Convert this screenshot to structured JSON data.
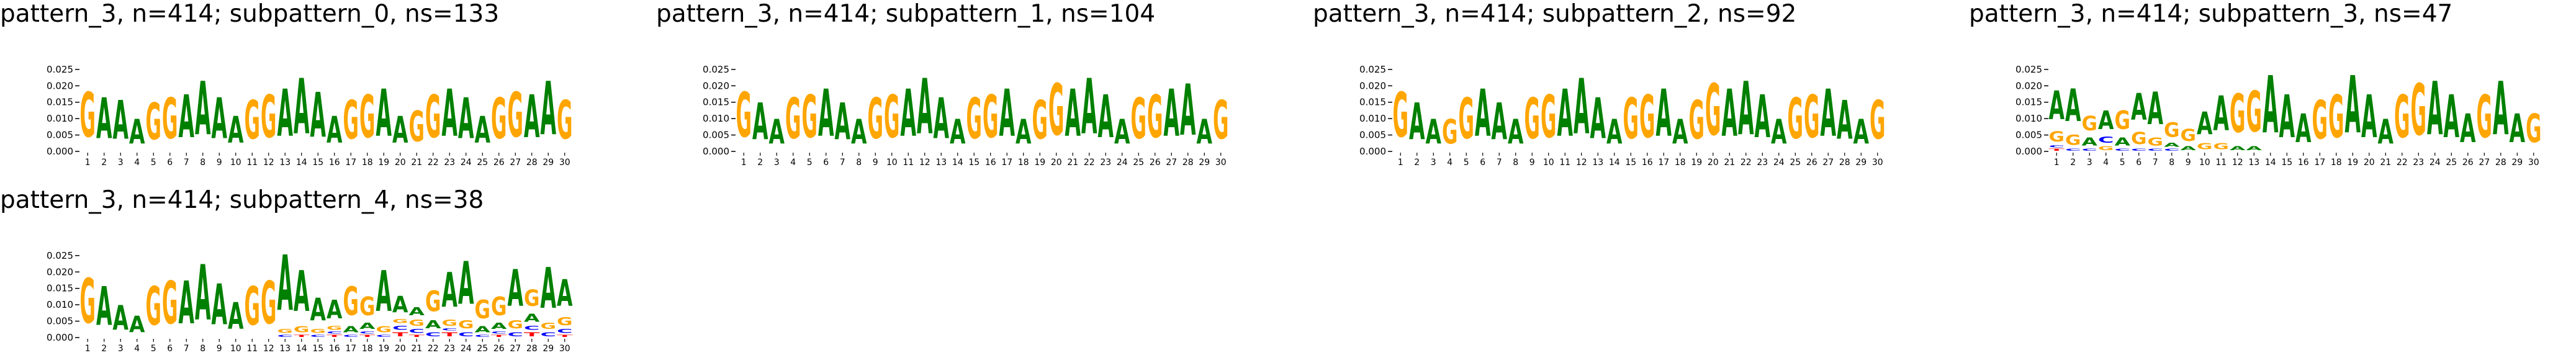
{
  "chart_data": [
    {
      "type": "sequence-logo",
      "title": "pattern_3, n=414; subpattern_0, ns=133",
      "ylim": [
        0,
        0.028
      ],
      "yticks": [
        "0.000",
        "0.005",
        "0.010",
        "0.015",
        "0.020",
        "0.025"
      ],
      "positions": [
        "1",
        "2",
        "3",
        "4",
        "5",
        "6",
        "7",
        "8",
        "9",
        "10",
        "11",
        "12",
        "13",
        "14",
        "15",
        "16",
        "17",
        "18",
        "19",
        "20",
        "21",
        "22",
        "23",
        "24",
        "25",
        "26",
        "27",
        "28",
        "29",
        "30"
      ],
      "columns": [
        [
          [
            "G",
            0.022
          ]
        ],
        [
          [
            "A",
            0.02
          ]
        ],
        [
          [
            "A",
            0.019
          ]
        ],
        [
          [
            "A",
            0.012
          ]
        ],
        [
          [
            "G",
            0.018
          ]
        ],
        [
          [
            "G",
            0.02
          ]
        ],
        [
          [
            "A",
            0.021
          ]
        ],
        [
          [
            "A",
            0.026
          ]
        ],
        [
          [
            "A",
            0.02
          ]
        ],
        [
          [
            "A",
            0.013
          ]
        ],
        [
          [
            "G",
            0.019
          ]
        ],
        [
          [
            "G",
            0.021
          ]
        ],
        [
          [
            "A",
            0.023
          ]
        ],
        [
          [
            "A",
            0.027
          ]
        ],
        [
          [
            "A",
            0.022
          ]
        ],
        [
          [
            "A",
            0.013
          ]
        ],
        [
          [
            "G",
            0.019
          ]
        ],
        [
          [
            "G",
            0.021
          ]
        ],
        [
          [
            "A",
            0.023
          ]
        ],
        [
          [
            "A",
            0.013
          ]
        ],
        [
          [
            "G",
            0.015
          ]
        ],
        [
          [
            "G",
            0.021
          ]
        ],
        [
          [
            "A",
            0.023
          ]
        ],
        [
          [
            "A",
            0.02
          ]
        ],
        [
          [
            "A",
            0.013
          ]
        ],
        [
          [
            "G",
            0.02
          ]
        ],
        [
          [
            "G",
            0.022
          ]
        ],
        [
          [
            "A",
            0.021
          ]
        ],
        [
          [
            "A",
            0.026
          ]
        ],
        [
          [
            "G",
            0.019
          ]
        ]
      ]
    },
    {
      "type": "sequence-logo",
      "title": "pattern_3, n=414; subpattern_1, ns=104",
      "ylim": [
        0,
        0.028
      ],
      "yticks": [
        "0.000",
        "0.005",
        "0.010",
        "0.015",
        "0.020",
        "0.025"
      ],
      "positions": [
        "1",
        "2",
        "3",
        "4",
        "5",
        "6",
        "7",
        "8",
        "9",
        "10",
        "11",
        "12",
        "13",
        "14",
        "15",
        "16",
        "17",
        "18",
        "19",
        "20",
        "21",
        "22",
        "23",
        "24",
        "25",
        "26",
        "27",
        "28",
        "29",
        "30"
      ],
      "columns": [
        [
          [
            "G",
            0.022
          ]
        ],
        [
          [
            "A",
            0.018
          ]
        ],
        [
          [
            "A",
            0.012
          ]
        ],
        [
          [
            "G",
            0.02
          ]
        ],
        [
          [
            "G",
            0.021
          ]
        ],
        [
          [
            "A",
            0.023
          ]
        ],
        [
          [
            "A",
            0.018
          ]
        ],
        [
          [
            "A",
            0.012
          ]
        ],
        [
          [
            "G",
            0.02
          ]
        ],
        [
          [
            "G",
            0.021
          ]
        ],
        [
          [
            "A",
            0.023
          ]
        ],
        [
          [
            "A",
            0.027
          ]
        ],
        [
          [
            "A",
            0.02
          ]
        ],
        [
          [
            "A",
            0.012
          ]
        ],
        [
          [
            "G",
            0.02
          ]
        ],
        [
          [
            "G",
            0.021
          ]
        ],
        [
          [
            "A",
            0.023
          ]
        ],
        [
          [
            "A",
            0.012
          ]
        ],
        [
          [
            "G",
            0.019
          ]
        ],
        [
          [
            "G",
            0.025
          ]
        ],
        [
          [
            "A",
            0.023
          ]
        ],
        [
          [
            "A",
            0.027
          ]
        ],
        [
          [
            "A",
            0.021
          ]
        ],
        [
          [
            "A",
            0.012
          ]
        ],
        [
          [
            "G",
            0.02
          ]
        ],
        [
          [
            "G",
            0.021
          ]
        ],
        [
          [
            "A",
            0.023
          ]
        ],
        [
          [
            "A",
            0.025
          ]
        ],
        [
          [
            "A",
            0.012
          ]
        ],
        [
          [
            "G",
            0.019
          ]
        ]
      ]
    },
    {
      "type": "sequence-logo",
      "title": "pattern_3, n=414; subpattern_2, ns=92",
      "ylim": [
        0,
        0.028
      ],
      "yticks": [
        "0.000",
        "0.005",
        "0.010",
        "0.015",
        "0.020",
        "0.025"
      ],
      "positions": [
        "1",
        "2",
        "3",
        "4",
        "5",
        "6",
        "7",
        "8",
        "9",
        "10",
        "11",
        "12",
        "13",
        "14",
        "15",
        "16",
        "17",
        "18",
        "19",
        "20",
        "21",
        "22",
        "23",
        "24",
        "25",
        "26",
        "27",
        "28",
        "29",
        "30"
      ],
      "columns": [
        [
          [
            "G",
            0.022
          ]
        ],
        [
          [
            "A",
            0.018
          ]
        ],
        [
          [
            "A",
            0.012
          ]
        ],
        [
          [
            "G",
            0.012
          ]
        ],
        [
          [
            "G",
            0.02
          ]
        ],
        [
          [
            "A",
            0.023
          ]
        ],
        [
          [
            "A",
            0.018
          ]
        ],
        [
          [
            "A",
            0.012
          ]
        ],
        [
          [
            "G",
            0.02
          ]
        ],
        [
          [
            "G",
            0.021
          ]
        ],
        [
          [
            "A",
            0.023
          ]
        ],
        [
          [
            "A",
            0.027
          ]
        ],
        [
          [
            "A",
            0.02
          ]
        ],
        [
          [
            "A",
            0.012
          ]
        ],
        [
          [
            "G",
            0.02
          ]
        ],
        [
          [
            "G",
            0.021
          ]
        ],
        [
          [
            "A",
            0.023
          ]
        ],
        [
          [
            "A",
            0.012
          ]
        ],
        [
          [
            "G",
            0.019
          ]
        ],
        [
          [
            "G",
            0.025
          ]
        ],
        [
          [
            "A",
            0.023
          ]
        ],
        [
          [
            "A",
            0.026
          ]
        ],
        [
          [
            "A",
            0.021
          ]
        ],
        [
          [
            "A",
            0.012
          ]
        ],
        [
          [
            "G",
            0.02
          ]
        ],
        [
          [
            "G",
            0.021
          ]
        ],
        [
          [
            "A",
            0.023
          ]
        ],
        [
          [
            "A",
            0.019
          ]
        ],
        [
          [
            "A",
            0.012
          ]
        ],
        [
          [
            "G",
            0.019
          ]
        ]
      ]
    },
    {
      "type": "sequence-logo",
      "title": "pattern_3, n=414; subpattern_3, ns=47",
      "ylim": [
        0,
        0.028
      ],
      "yticks": [
        "0.000",
        "0.005",
        "0.010",
        "0.015",
        "0.020",
        "0.025"
      ],
      "positions": [
        "1",
        "2",
        "3",
        "4",
        "5",
        "6",
        "7",
        "8",
        "9",
        "10",
        "11",
        "12",
        "13",
        "14",
        "15",
        "16",
        "17",
        "18",
        "19",
        "20",
        "21",
        "22",
        "23",
        "24",
        "25",
        "26",
        "27",
        "28",
        "29",
        "30"
      ],
      "columns": [
        [
          [
            "T",
            0.001
          ],
          [
            "C",
            0.001
          ],
          [
            "G",
            0.005
          ],
          [
            "A",
            0.014
          ]
        ],
        [
          [
            "C",
            0.001
          ],
          [
            "G",
            0.005
          ],
          [
            "A",
            0.016
          ]
        ],
        [
          [
            "C",
            0.001
          ],
          [
            "A",
            0.004
          ],
          [
            "G",
            0.007
          ]
        ],
        [
          [
            "G",
            0.002
          ],
          [
            "C",
            0.003
          ],
          [
            "A",
            0.009
          ]
        ],
        [
          [
            "C",
            0.001
          ],
          [
            "A",
            0.004
          ],
          [
            "G",
            0.009
          ]
        ],
        [
          [
            "C",
            0.001
          ],
          [
            "G",
            0.006
          ],
          [
            "A",
            0.013
          ]
        ],
        [
          [
            "C",
            0.001
          ],
          [
            "G",
            0.004
          ],
          [
            "A",
            0.016
          ]
        ],
        [
          [
            "C",
            0.001
          ],
          [
            "A",
            0.002
          ],
          [
            "G",
            0.007
          ]
        ],
        [
          [
            "A",
            0.002
          ],
          [
            "G",
            0.006
          ]
        ],
        [
          [
            "G",
            0.003
          ],
          [
            "A",
            0.011
          ]
        ],
        [
          [
            "G",
            0.003
          ],
          [
            "A",
            0.017
          ]
        ],
        [
          [
            "A",
            0.002
          ],
          [
            "G",
            0.019
          ]
        ],
        [
          [
            "A",
            0.002
          ],
          [
            "G",
            0.02
          ]
        ],
        [
          [
            "A",
            0.028
          ]
        ],
        [
          [
            "A",
            0.021
          ]
        ],
        [
          [
            "A",
            0.014
          ]
        ],
        [
          [
            "G",
            0.019
          ]
        ],
        [
          [
            "G",
            0.021
          ]
        ],
        [
          [
            "A",
            0.028
          ]
        ],
        [
          [
            "A",
            0.021
          ]
        ],
        [
          [
            "A",
            0.012
          ]
        ],
        [
          [
            "G",
            0.021
          ]
        ],
        [
          [
            "G",
            0.025
          ]
        ],
        [
          [
            "A",
            0.026
          ]
        ],
        [
          [
            "A",
            0.021
          ]
        ],
        [
          [
            "A",
            0.014
          ]
        ],
        [
          [
            "G",
            0.021
          ]
        ],
        [
          [
            "A",
            0.026
          ]
        ],
        [
          [
            "A",
            0.014
          ]
        ],
        [
          [
            "G",
            0.014
          ]
        ]
      ]
    },
    {
      "type": "sequence-logo",
      "title": "pattern_3, n=414; subpattern_4, ns=38",
      "ylim": [
        0,
        0.028
      ],
      "yticks": [
        "0.000",
        "0.005",
        "0.010",
        "0.015",
        "0.020",
        "0.025"
      ],
      "positions": [
        "1",
        "2",
        "3",
        "4",
        "5",
        "6",
        "7",
        "8",
        "9",
        "10",
        "11",
        "12",
        "13",
        "14",
        "15",
        "16",
        "17",
        "18",
        "19",
        "20",
        "21",
        "22",
        "23",
        "24",
        "25",
        "26",
        "27",
        "28",
        "29",
        "30"
      ],
      "columns": [
        [
          [
            "G",
            0.022
          ]
        ],
        [
          [
            "A",
            0.019
          ]
        ],
        [
          [
            "A",
            0.012
          ]
        ],
        [
          [
            "A",
            0.008
          ]
        ],
        [
          [
            "G",
            0.019
          ]
        ],
        [
          [
            "G",
            0.021
          ]
        ],
        [
          [
            "A",
            0.021
          ]
        ],
        [
          [
            "A",
            0.027
          ]
        ],
        [
          [
            "A",
            0.02
          ]
        ],
        [
          [
            "A",
            0.013
          ]
        ],
        [
          [
            "G",
            0.019
          ]
        ],
        [
          [
            "G",
            0.021
          ]
        ],
        [
          [
            "C",
            0.001
          ],
          [
            "G",
            0.002
          ],
          [
            "A",
            0.027
          ]
        ],
        [
          [
            "T",
            0.001
          ],
          [
            "G",
            0.003
          ],
          [
            "A",
            0.02
          ]
        ],
        [
          [
            "C",
            0.001
          ],
          [
            "G",
            0.002
          ],
          [
            "A",
            0.011
          ]
        ],
        [
          [
            "T",
            0.001
          ],
          [
            "C",
            0.001
          ],
          [
            "G",
            0.002
          ],
          [
            "A",
            0.009
          ]
        ],
        [
          [
            "C",
            0.001
          ],
          [
            "A",
            0.003
          ],
          [
            "G",
            0.014
          ]
        ],
        [
          [
            "T",
            0.001
          ],
          [
            "C",
            0.001
          ],
          [
            "A",
            0.003
          ],
          [
            "G",
            0.009
          ]
        ],
        [
          [
            "C",
            0.001
          ],
          [
            "G",
            0.003
          ],
          [
            "A",
            0.02
          ]
        ],
        [
          [
            "T",
            0.002
          ],
          [
            "C",
            0.002
          ],
          [
            "G",
            0.002
          ],
          [
            "A",
            0.008
          ]
        ],
        [
          [
            "T",
            0.001
          ],
          [
            "C",
            0.002
          ],
          [
            "G",
            0.003
          ],
          [
            "A",
            0.004
          ]
        ],
        [
          [
            "C",
            0.002
          ],
          [
            "A",
            0.004
          ],
          [
            "G",
            0.01
          ]
        ],
        [
          [
            "T",
            0.002
          ],
          [
            "C",
            0.001
          ],
          [
            "G",
            0.003
          ],
          [
            "A",
            0.017
          ]
        ],
        [
          [
            "C",
            0.002
          ],
          [
            "G",
            0.004
          ],
          [
            "A",
            0.021
          ]
        ],
        [
          [
            "C",
            0.001
          ],
          [
            "A",
            0.003
          ],
          [
            "G",
            0.009
          ]
        ],
        [
          [
            "T",
            0.001
          ],
          [
            "C",
            0.001
          ],
          [
            "A",
            0.003
          ],
          [
            "G",
            0.009
          ]
        ],
        [
          [
            "C",
            0.002
          ],
          [
            "G",
            0.004
          ],
          [
            "A",
            0.018
          ]
        ],
        [
          [
            "T",
            0.002
          ],
          [
            "C",
            0.002
          ],
          [
            "A",
            0.004
          ],
          [
            "G",
            0.008
          ]
        ],
        [
          [
            "C",
            0.002
          ],
          [
            "G",
            0.003
          ],
          [
            "A",
            0.02
          ]
        ],
        [
          [
            "T",
            0.001
          ],
          [
            "C",
            0.002
          ],
          [
            "G",
            0.004
          ],
          [
            "A",
            0.013
          ]
        ]
      ]
    }
  ],
  "colors": {
    "A": "#008000",
    "C": "#0000ff",
    "G": "#ffa500",
    "T": "#ff0000"
  }
}
